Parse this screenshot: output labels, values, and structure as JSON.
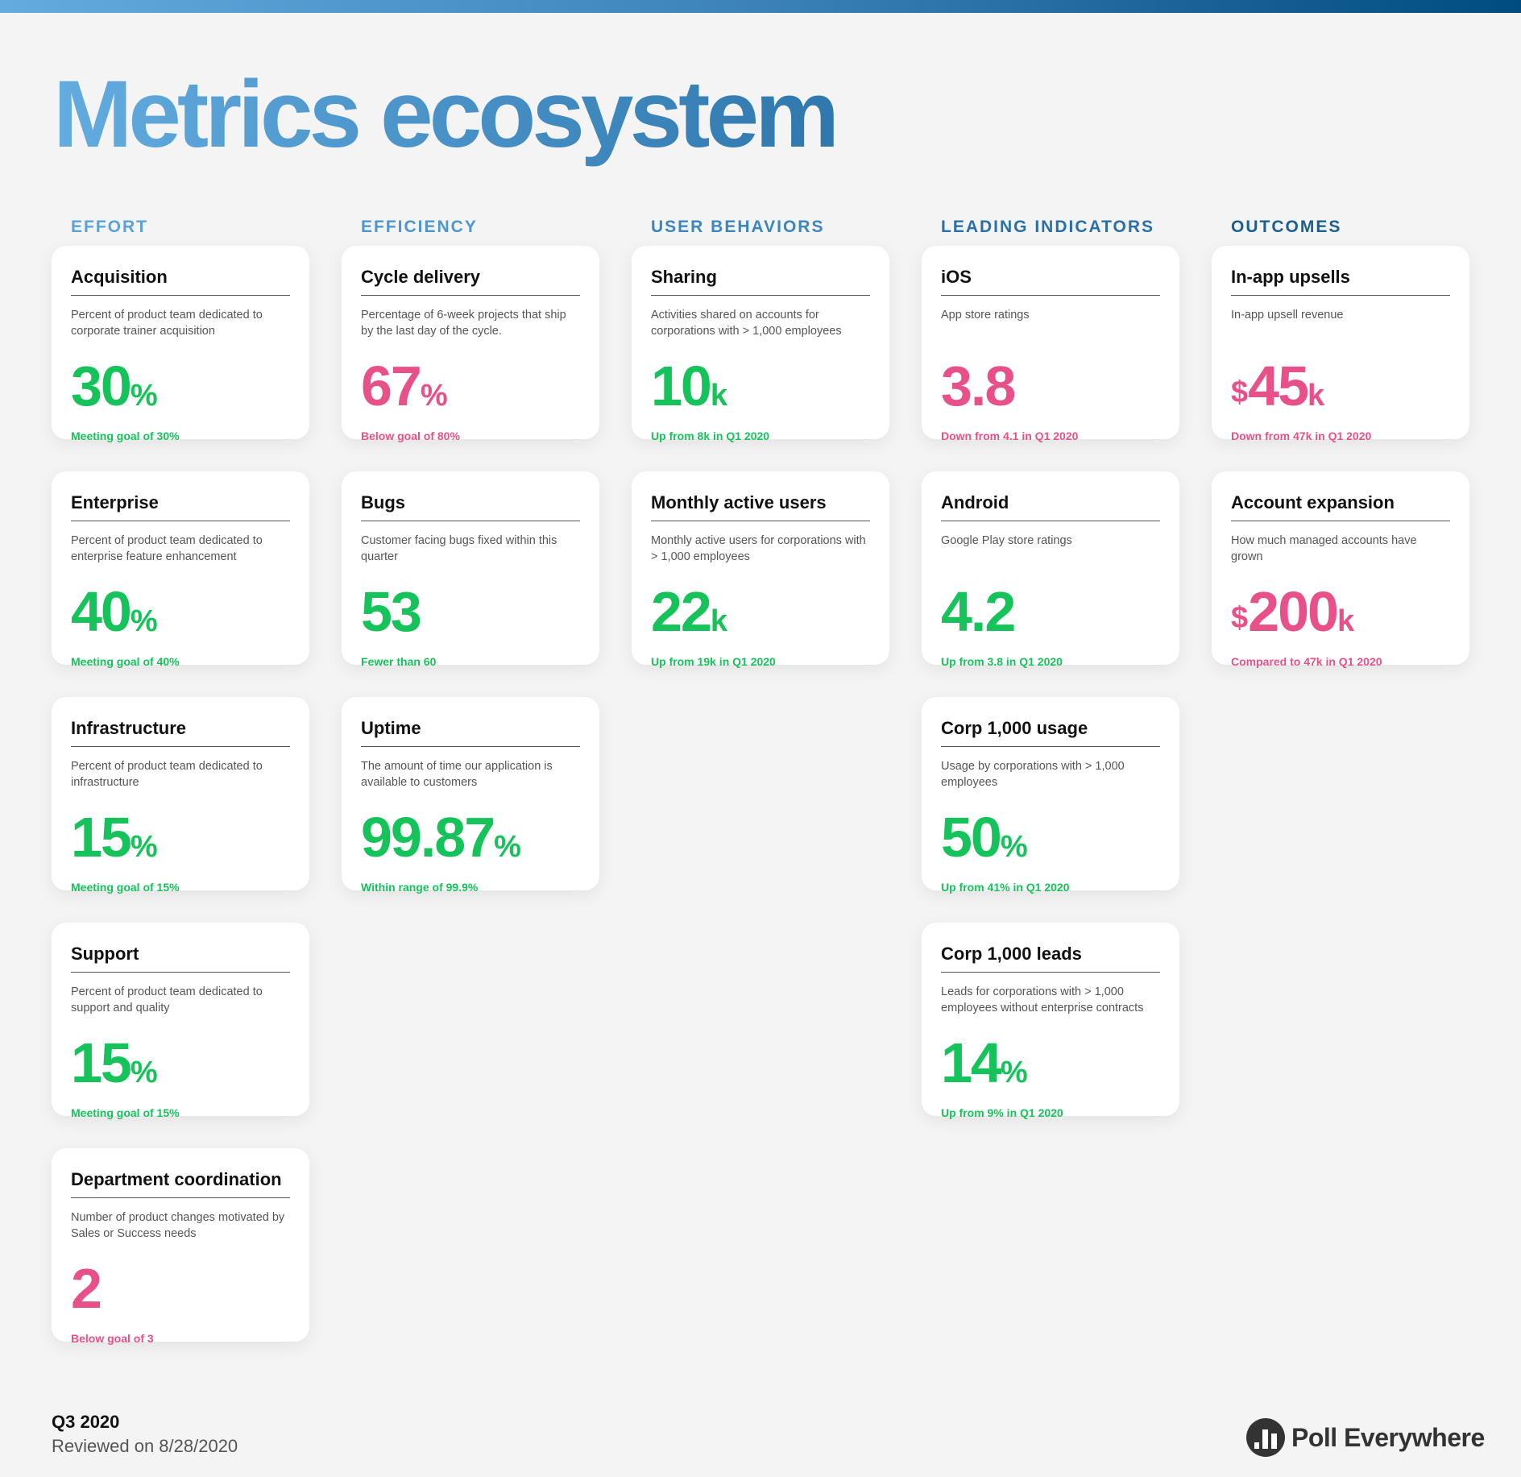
{
  "title": "Metrics ecosystem",
  "colors": {
    "good": "#16c25a",
    "bad": "#e8508a",
    "brand_blue": "#3b82b8"
  },
  "columns": [
    {
      "heading": "EFFORT",
      "color": "#5aa3d6",
      "cards": [
        {
          "title": "Acquisition",
          "desc": "Percent of product team dedicated to corporate trainer acquisition",
          "prefix": "",
          "value": "30",
          "unit": "%",
          "status": "Meeting goal of 30%",
          "tone": "green"
        },
        {
          "title": "Enterprise",
          "desc": "Percent of product team dedicated to enterprise feature enhancement",
          "prefix": "",
          "value": "40",
          "unit": "%",
          "status": "Meeting goal of 40%",
          "tone": "green"
        },
        {
          "title": "Infrastructure",
          "desc": "Percent of product team dedicated to infrastructure",
          "prefix": "",
          "value": "15",
          "unit": "%",
          "status": "Meeting goal of 15%",
          "tone": "green"
        },
        {
          "title": "Support",
          "desc": "Percent of product team dedicated to support and quality",
          "prefix": "",
          "value": "15",
          "unit": "%",
          "status": "Meeting goal of 15%",
          "tone": "green"
        },
        {
          "title": "Department coordination",
          "desc": "Number of product changes motivated by Sales or Success needs",
          "prefix": "",
          "value": "2",
          "unit": "",
          "status": "Below goal of 3",
          "tone": "pink"
        }
      ]
    },
    {
      "heading": "EFFICIENCY",
      "color": "#4d97cc",
      "cards": [
        {
          "title": "Cycle delivery",
          "desc": "Percentage of 6-week projects that ship by the last day of the cycle.",
          "prefix": "",
          "value": "67",
          "unit": "%",
          "status": "Below goal of 80%",
          "tone": "pink"
        },
        {
          "title": "Bugs",
          "desc": "Customer facing bugs fixed within this quarter",
          "prefix": "",
          "value": "53",
          "unit": "",
          "status": "Fewer than 60",
          "tone": "green"
        },
        {
          "title": "Uptime",
          "desc": "The amount of time our application is available to customers",
          "prefix": "",
          "value": "99.87",
          "unit": "%",
          "status": "Within range of 99.9%",
          "tone": "green"
        }
      ]
    },
    {
      "heading": "USER BEHAVIORS",
      "color": "#3c86bd",
      "cards": [
        {
          "title": "Sharing",
          "desc": "Activities shared on accounts for corporations with > 1,000 employees",
          "prefix": "",
          "value": "10",
          "unit": "k",
          "status": "Up from 8k in Q1 2020",
          "tone": "green"
        },
        {
          "title": "Monthly active users",
          "desc": "Monthly active users for corporations with > 1,000 employees",
          "prefix": "",
          "value": "22",
          "unit": "k",
          "status": "Up from 19k in Q1 2020",
          "tone": "green"
        }
      ]
    },
    {
      "heading": "LEADING INDICATORS",
      "color": "#2a70a6",
      "cards": [
        {
          "title": "iOS",
          "desc": "App store ratings",
          "prefix": "",
          "value": "3.8",
          "unit": "",
          "status": "Down from 4.1 in Q1 2020",
          "tone": "pink"
        },
        {
          "title": "Android",
          "desc": "Google Play store ratings",
          "prefix": "",
          "value": "4.2",
          "unit": "",
          "status": "Up from 3.8 in Q1 2020",
          "tone": "green"
        },
        {
          "title": "Corp 1,000 usage",
          "desc": "Usage by corporations with > 1,000 employees",
          "prefix": "",
          "value": "50",
          "unit": "%",
          "status": "Up from 41% in Q1 2020",
          "tone": "green"
        },
        {
          "title": "Corp 1,000 leads",
          "desc": "Leads for corporations with > 1,000 employees without enterprise contracts",
          "prefix": "",
          "value": "14",
          "unit": "%",
          "status": "Up from 9% in Q1 2020",
          "tone": "green"
        }
      ]
    },
    {
      "heading": "OUTCOMES",
      "color": "#1a5f92",
      "cards": [
        {
          "title": "In-app upsells",
          "desc": "In-app upsell revenue",
          "prefix": "$",
          "value": "45",
          "unit": "k",
          "status": "Down from 47k in Q1 2020",
          "tone": "pink"
        },
        {
          "title": "Account expansion",
          "desc": "How much managed accounts have grown",
          "prefix": "$",
          "value": "200",
          "unit": "k",
          "status": "Compared to 47k in Q1 2020",
          "tone": "pink"
        }
      ]
    }
  ],
  "footer": {
    "quarter": "Q3 2020",
    "reviewed": "Reviewed on 8/28/2020"
  },
  "logo": {
    "text": "Poll Everywhere",
    "icon": "bar-chart-circle-icon"
  }
}
